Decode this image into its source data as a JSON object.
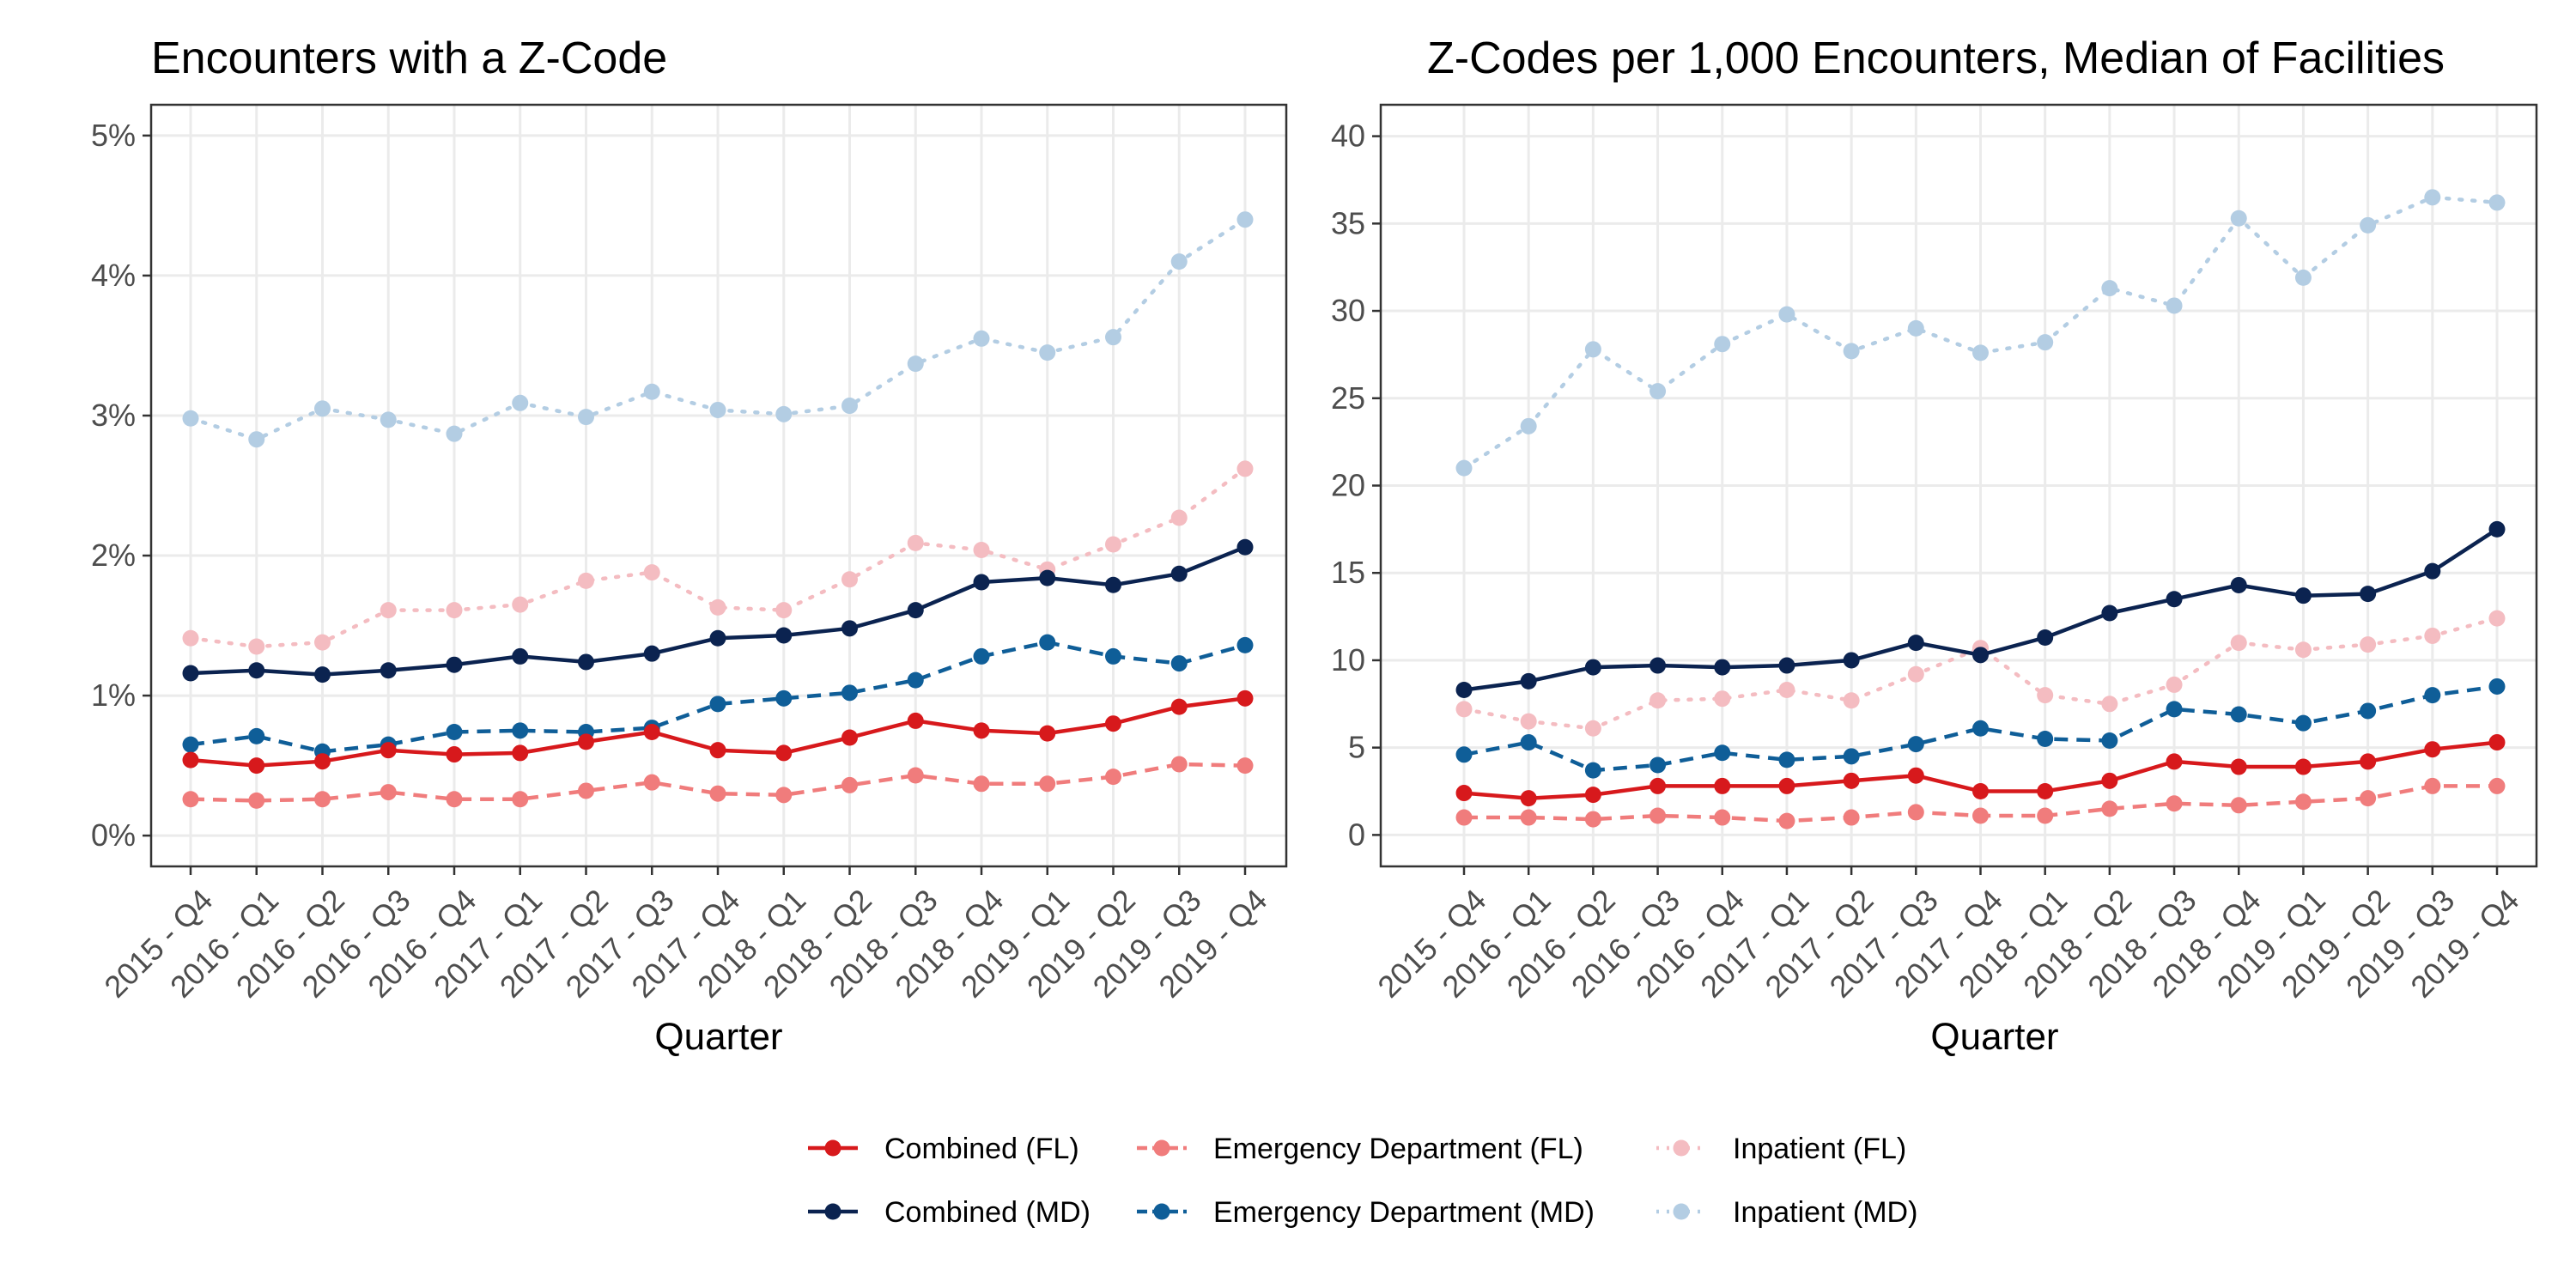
{
  "figure": {
    "legend_position": "bottom"
  },
  "legend": [
    {
      "key": "combined_fl",
      "label": "Combined (FL)",
      "color": "#D7191C",
      "linetype": "solid",
      "row": 0,
      "col": 0
    },
    {
      "key": "ed_fl",
      "label": "Emergency Department (FL)",
      "color": "#F07C7C",
      "linetype": "dashed",
      "row": 0,
      "col": 1
    },
    {
      "key": "inp_fl",
      "label": "Inpatient (FL)",
      "color": "#F4BCC1",
      "linetype": "dotted",
      "row": 0,
      "col": 2
    },
    {
      "key": "combined_md",
      "label": "Combined (MD)",
      "color": "#0B2350",
      "linetype": "solid",
      "row": 1,
      "col": 0
    },
    {
      "key": "ed_md",
      "label": "Emergency Department (MD)",
      "color": "#0F5E98",
      "linetype": "dashed",
      "row": 1,
      "col": 1
    },
    {
      "key": "inp_md",
      "label": "Inpatient (MD)",
      "color": "#B3CDE3",
      "linetype": "dotted",
      "row": 1,
      "col": 2
    }
  ],
  "chart_data": [
    {
      "type": "line",
      "title": "Encounters with a Z-Code",
      "xlabel": "Quarter",
      "ylabel": "",
      "ylim": [
        -0.0022,
        0.0522
      ],
      "yticks": [
        0,
        0.01,
        0.02,
        0.03,
        0.04,
        0.05
      ],
      "ytick_labels": [
        "0%",
        "1%",
        "2%",
        "3%",
        "4%",
        "5%"
      ],
      "grid": true,
      "categories": [
        "2015 - Q4",
        "2016 - Q1",
        "2016 - Q2",
        "2016 - Q3",
        "2016 - Q4",
        "2017 - Q1",
        "2017 - Q2",
        "2017 - Q3",
        "2017 - Q4",
        "2018 - Q1",
        "2018 - Q2",
        "2018 - Q3",
        "2018 - Q4",
        "2019 - Q1",
        "2019 - Q2",
        "2019 - Q3",
        "2019 - Q4"
      ],
      "series": [
        {
          "key": "inp_md",
          "name": "Inpatient (MD)",
          "values": [
            0.0298,
            0.0283,
            0.0305,
            0.0297,
            0.0287,
            0.0309,
            0.0299,
            0.0317,
            0.0304,
            0.0301,
            0.0307,
            0.0337,
            0.0355,
            0.0345,
            0.0356,
            0.041,
            0.044
          ]
        },
        {
          "key": "inp_fl",
          "name": "Inpatient (FL)",
          "values": [
            0.0141,
            0.0135,
            0.0138,
            0.0161,
            0.0161,
            0.0165,
            0.0182,
            0.0188,
            0.0163,
            0.0161,
            0.0183,
            0.0209,
            0.0204,
            0.019,
            0.0208,
            0.0227,
            0.0262
          ]
        },
        {
          "key": "combined_md",
          "name": "Combined (MD)",
          "values": [
            0.0116,
            0.0118,
            0.0115,
            0.0118,
            0.0122,
            0.0128,
            0.0124,
            0.013,
            0.0141,
            0.0143,
            0.0148,
            0.0161,
            0.0181,
            0.0184,
            0.0179,
            0.0187,
            0.0206
          ]
        },
        {
          "key": "ed_md",
          "name": "Emergency Department (MD)",
          "values": [
            0.0065,
            0.0071,
            0.006,
            0.0065,
            0.0074,
            0.0075,
            0.0074,
            0.0077,
            0.0094,
            0.0098,
            0.0102,
            0.0111,
            0.0128,
            0.0138,
            0.0128,
            0.0123,
            0.0136
          ]
        },
        {
          "key": "combined_fl",
          "name": "Combined (FL)",
          "values": [
            0.0054,
            0.005,
            0.0053,
            0.0061,
            0.0058,
            0.0059,
            0.0067,
            0.0074,
            0.0061,
            0.0059,
            0.007,
            0.0082,
            0.0075,
            0.0073,
            0.008,
            0.0092,
            0.0098
          ]
        },
        {
          "key": "ed_fl",
          "name": "Emergency Department (FL)",
          "values": [
            0.0026,
            0.0025,
            0.0026,
            0.0031,
            0.0026,
            0.0026,
            0.0032,
            0.0038,
            0.003,
            0.0029,
            0.0036,
            0.0043,
            0.0037,
            0.0037,
            0.0042,
            0.0051,
            0.005
          ]
        }
      ]
    },
    {
      "type": "line",
      "title": "Z-Codes per 1,000 Encounters, Median of Facilities",
      "xlabel": "Quarter",
      "ylabel": "",
      "ylim": [
        -1.8,
        41.8
      ],
      "yticks": [
        0,
        5,
        10,
        15,
        20,
        25,
        30,
        35,
        40
      ],
      "ytick_labels": [
        "0",
        "5",
        "10",
        "15",
        "20",
        "25",
        "30",
        "35",
        "40"
      ],
      "grid": true,
      "categories": [
        "2015 - Q4",
        "2016 - Q1",
        "2016 - Q2",
        "2016 - Q3",
        "2016 - Q4",
        "2017 - Q1",
        "2017 - Q2",
        "2017 - Q3",
        "2017 - Q4",
        "2018 - Q1",
        "2018 - Q2",
        "2018 - Q3",
        "2018 - Q4",
        "2019 - Q1",
        "2019 - Q2",
        "2019 - Q3",
        "2019 - Q4"
      ],
      "series": [
        {
          "key": "inp_md",
          "name": "Inpatient (MD)",
          "values": [
            21.0,
            23.4,
            27.8,
            25.4,
            28.1,
            29.8,
            27.7,
            29.0,
            27.6,
            28.2,
            31.3,
            30.3,
            35.3,
            31.9,
            34.9,
            36.5,
            36.2
          ]
        },
        {
          "key": "combined_md",
          "name": "Combined (MD)",
          "values": [
            8.3,
            8.8,
            9.6,
            9.7,
            9.6,
            9.7,
            10.0,
            11.0,
            10.3,
            11.3,
            12.7,
            13.5,
            14.3,
            13.7,
            13.8,
            15.1,
            17.5
          ]
        },
        {
          "key": "inp_fl",
          "name": "Inpatient (FL)",
          "values": [
            7.2,
            6.5,
            6.1,
            7.7,
            7.8,
            8.3,
            7.7,
            9.2,
            10.7,
            8.0,
            7.5,
            8.6,
            11.0,
            10.6,
            10.9,
            11.4,
            12.4
          ]
        },
        {
          "key": "ed_md",
          "name": "Emergency Department (MD)",
          "values": [
            4.6,
            5.3,
            3.7,
            4.0,
            4.7,
            4.3,
            4.5,
            5.2,
            6.1,
            5.5,
            5.4,
            7.2,
            6.9,
            6.4,
            7.1,
            8.0,
            8.5
          ]
        },
        {
          "key": "combined_fl",
          "name": "Combined (FL)",
          "values": [
            2.4,
            2.1,
            2.3,
            2.8,
            2.8,
            2.8,
            3.1,
            3.4,
            2.5,
            2.5,
            3.1,
            4.2,
            3.9,
            3.9,
            4.2,
            4.9,
            5.3
          ]
        },
        {
          "key": "ed_fl",
          "name": "Emergency Department (FL)",
          "values": [
            1.0,
            1.0,
            0.9,
            1.1,
            1.0,
            0.8,
            1.0,
            1.3,
            1.1,
            1.1,
            1.5,
            1.8,
            1.7,
            1.9,
            2.1,
            2.8,
            2.8
          ]
        }
      ]
    }
  ]
}
